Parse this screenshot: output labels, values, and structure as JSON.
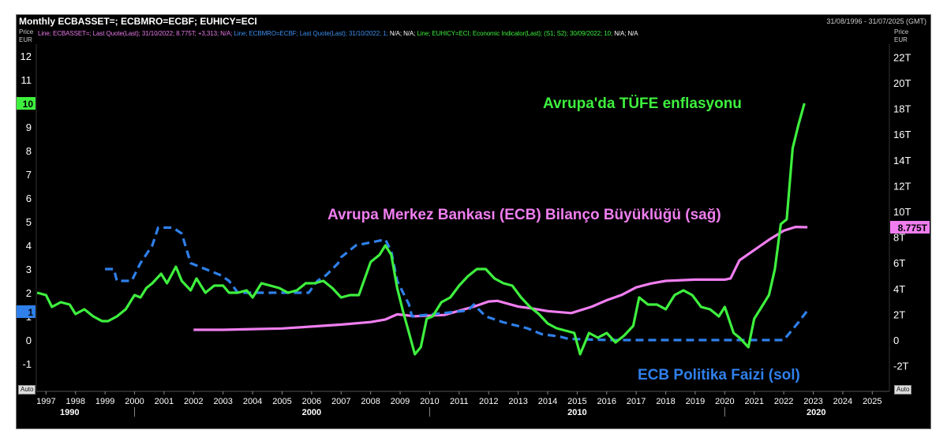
{
  "header": {
    "title": "Monthly ECBASSET=; ECBMRO=ECBF; EUHICY=ECI",
    "date_range": "31/08/1996 - 31/07/2025 (GMT)",
    "legend_line": [
      {
        "text": "Line; ECBASSET=; Last Quote(Last); 31/10/2022; 8.775T; +3,313; N/A; ",
        "color": "#e879e8"
      },
      {
        "text": "Line; ECBMRO=ECBF; Last Quote(Last); 31/10/2022; 1; ",
        "color": "#3d8ff0"
      },
      {
        "text": "N/A; N/A; ",
        "color": "#ffffff"
      },
      {
        "text": "Line; EUHICY=ECI; Economic Indicator(Last); (S1; S2); 30/09/2022; 10; ",
        "color": "#3ef03e"
      },
      {
        "text": "N/A; N/A",
        "color": "#ffffff"
      }
    ]
  },
  "axes": {
    "left_unit": "Price\nEUR",
    "right_unit": "Price\nEUR",
    "auto_label": "Auto",
    "left_ticks": [
      "-1",
      "0",
      "1",
      "2",
      "3",
      "4",
      "5",
      "6",
      "7",
      "8",
      "9",
      "10",
      "11",
      "12"
    ],
    "right_ticks": [
      "-2T",
      "0",
      "2T",
      "4T",
      "6T",
      "8T",
      "10T",
      "12T",
      "14T",
      "16T",
      "18T",
      "20T",
      "22T"
    ],
    "x_year_ticks": [
      "1997",
      "1998",
      "1999",
      "2000",
      "2001",
      "2002",
      "2003",
      "2004",
      "2005",
      "2006",
      "2007",
      "2008",
      "2009",
      "2010",
      "2011",
      "2012",
      "2013",
      "2014",
      "2015",
      "2016",
      "2017",
      "2018",
      "2019",
      "2020",
      "2021",
      "2022",
      "2023",
      "2024",
      "2025"
    ],
    "x_decade_labels": [
      "1990",
      "2000",
      "2010",
      "2020"
    ]
  },
  "badges": {
    "green_last": "10",
    "blue_last": "1",
    "pink_last": "8.775T"
  },
  "annotations": {
    "cpi": "Avrupa'da TÜFE enflasyonu",
    "balance": "Avrupa Merkez Bankası (ECB) Bilanço Büyüklüğü (sağ)",
    "rate": "ECB Politika Faizi (sol)"
  },
  "colors": {
    "cpi": "#3ef03e",
    "balance": "#f07ef0",
    "rate": "#2f80ea",
    "background": "#000000",
    "axis_text": "#ffffff"
  },
  "chart_data": {
    "type": "line",
    "title": "Monthly ECBASSET=; ECBMRO=ECBF; EUHICY=ECI",
    "x_range": [
      1996.67,
      2025.58
    ],
    "ylim_left": [
      -1.5,
      12.5
    ],
    "ylim_right": [
      -2.5,
      23
    ],
    "series": [
      {
        "name": "Avrupa'da TÜFE enflasyonu",
        "axis": "left",
        "x": [
          1996.7,
          1997.0,
          1997.2,
          1997.5,
          1997.8,
          1998.0,
          1998.3,
          1998.6,
          1998.9,
          1999.1,
          1999.4,
          1999.7,
          2000.0,
          2000.2,
          2000.4,
          2000.6,
          2000.9,
          2001.1,
          2001.4,
          2001.6,
          2001.9,
          2002.1,
          2002.4,
          2002.7,
          2003.0,
          2003.2,
          2003.5,
          2003.8,
          2004.0,
          2004.3,
          2004.6,
          2004.9,
          2005.2,
          2005.5,
          2005.8,
          2006.1,
          2006.4,
          2006.7,
          2007.0,
          2007.3,
          2007.6,
          2007.8,
          2008.0,
          2008.3,
          2008.5,
          2008.7,
          2008.9,
          2009.1,
          2009.3,
          2009.5,
          2009.7,
          2009.9,
          2010.1,
          2010.4,
          2010.7,
          2011.0,
          2011.3,
          2011.6,
          2011.9,
          2012.2,
          2012.5,
          2012.8,
          2013.1,
          2013.4,
          2013.7,
          2014.0,
          2014.3,
          2014.6,
          2014.9,
          2015.1,
          2015.4,
          2015.7,
          2016.0,
          2016.3,
          2016.6,
          2016.9,
          2017.1,
          2017.4,
          2017.7,
          2018.0,
          2018.3,
          2018.6,
          2018.9,
          2019.2,
          2019.5,
          2019.8,
          2020.0,
          2020.3,
          2020.5,
          2020.8,
          2021.0,
          2021.2,
          2021.5,
          2021.7,
          2021.9,
          2022.1,
          2022.3,
          2022.5,
          2022.7
        ],
        "values": [
          2.0,
          1.9,
          1.4,
          1.6,
          1.5,
          1.1,
          1.3,
          1.0,
          0.8,
          0.8,
          1.0,
          1.3,
          1.9,
          1.8,
          2.2,
          2.4,
          2.8,
          2.4,
          3.1,
          2.5,
          2.1,
          2.6,
          2.0,
          2.3,
          2.3,
          2.0,
          2.0,
          2.1,
          1.8,
          2.4,
          2.3,
          2.2,
          2.0,
          2.1,
          2.4,
          2.4,
          2.5,
          2.2,
          1.8,
          1.9,
          1.9,
          2.6,
          3.3,
          3.6,
          4.0,
          3.6,
          2.2,
          1.2,
          0.3,
          -0.6,
          -0.3,
          0.9,
          1.0,
          1.6,
          1.8,
          2.3,
          2.7,
          3.0,
          3.0,
          2.6,
          2.4,
          2.3,
          1.8,
          1.4,
          1.1,
          0.7,
          0.5,
          0.4,
          0.3,
          -0.6,
          0.3,
          0.1,
          0.3,
          -0.1,
          0.2,
          0.6,
          1.8,
          1.5,
          1.5,
          1.3,
          1.9,
          2.1,
          1.9,
          1.4,
          1.3,
          1.0,
          1.4,
          0.3,
          0.1,
          -0.3,
          0.9,
          1.3,
          1.9,
          3.0,
          4.9,
          5.1,
          8.1,
          9.1,
          10.0
        ]
      },
      {
        "name": "Avrupa Merkez Bankası (ECB) Bilanço Büyüklüğü (sağ)",
        "axis": "right",
        "x": [
          2002.0,
          2003.0,
          2004.0,
          2005.0,
          2006.0,
          2007.0,
          2008.0,
          2008.5,
          2008.9,
          2009.5,
          2010.5,
          2011.5,
          2012.0,
          2012.3,
          2013.0,
          2013.5,
          2014.0,
          2014.8,
          2015.5,
          2016.0,
          2016.5,
          2017.0,
          2017.5,
          2018.0,
          2019.0,
          2020.0,
          2020.2,
          2020.5,
          2021.0,
          2021.5,
          2022.0,
          2022.4,
          2022.8
        ],
        "values": [
          0.8,
          0.8,
          0.85,
          0.9,
          1.05,
          1.2,
          1.4,
          1.6,
          2.0,
          1.85,
          1.95,
          2.6,
          3.0,
          3.05,
          2.6,
          2.45,
          2.25,
          2.1,
          2.6,
          3.1,
          3.5,
          4.1,
          4.4,
          4.6,
          4.7,
          4.7,
          4.8,
          6.2,
          7.0,
          7.8,
          8.5,
          8.8,
          8.775
        ]
      },
      {
        "name": "ECB Politika Faizi (sol)",
        "axis": "left",
        "x": [
          1999.0,
          1999.3,
          1999.4,
          1999.9,
          2000.2,
          2000.6,
          2000.8,
          2001.3,
          2001.6,
          2001.9,
          2002.9,
          2003.2,
          2003.5,
          2005.9,
          2006.2,
          2006.5,
          2006.9,
          2007.0,
          2007.5,
          2008.5,
          2008.7,
          2008.9,
          2009.1,
          2009.3,
          2009.4,
          2011.3,
          2011.5,
          2011.9,
          2012.5,
          2013.3,
          2013.8,
          2014.4,
          2014.7,
          2016.1,
          2022.0,
          2022.5,
          2022.8
        ],
        "values": [
          3.0,
          3.0,
          2.5,
          2.5,
          3.25,
          4.0,
          4.75,
          4.75,
          4.5,
          3.25,
          2.75,
          2.5,
          2.0,
          2.0,
          2.5,
          2.75,
          3.25,
          3.5,
          4.0,
          4.25,
          3.75,
          2.5,
          2.0,
          1.5,
          1.0,
          1.25,
          1.5,
          1.0,
          0.75,
          0.5,
          0.25,
          0.15,
          0.05,
          0.0,
          0.0,
          0.75,
          1.25
        ]
      }
    ]
  }
}
